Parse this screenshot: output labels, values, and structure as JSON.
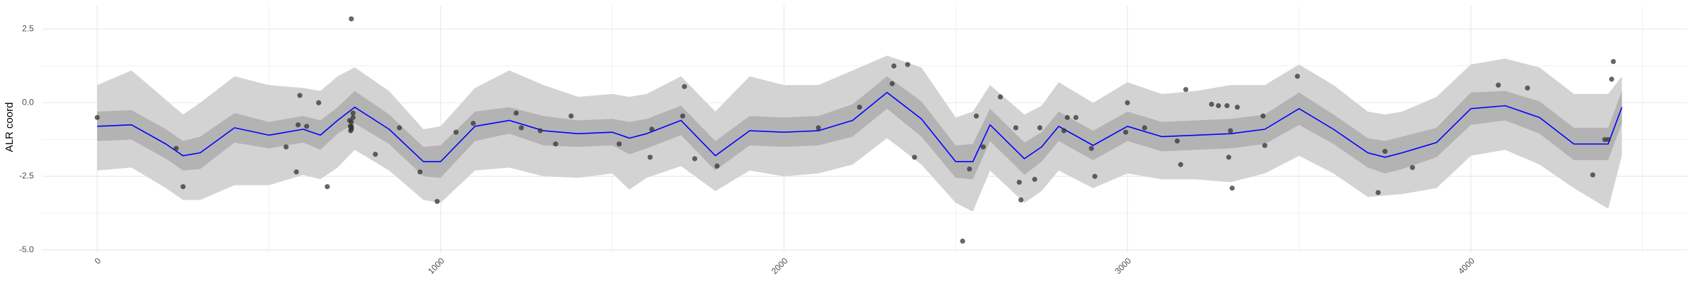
{
  "chart_data": {
    "type": "scatter",
    "title": "",
    "xlabel": "",
    "ylabel": "ALR coord",
    "xlim": [
      -160,
      4630
    ],
    "ylim": [
      -5.1,
      3.3
    ],
    "grid": true,
    "legend": "none",
    "x_ticks": [
      0,
      1000,
      2000,
      3000,
      4000
    ],
    "x_tick_labels": [
      "0",
      "1000",
      "2000",
      "3000",
      "4000"
    ],
    "y_ticks": [
      2.5,
      0.0,
      -2.5,
      -5.0
    ],
    "y_tick_labels": [
      "2.5",
      "0.0",
      "-2.5",
      "-5.0"
    ],
    "colors": {
      "fit_line": "#0000ff",
      "inner_band": "#b3b3b3",
      "outer_band": "#d3d3d3",
      "points": "#333333",
      "grid": "#ebebeb"
    },
    "points": [
      {
        "x": 0,
        "y": -0.5
      },
      {
        "x": 230,
        "y": -1.55
      },
      {
        "x": 250,
        "y": -2.85
      },
      {
        "x": 550,
        "y": -1.5
      },
      {
        "x": 580,
        "y": -2.35
      },
      {
        "x": 585,
        "y": -0.75
      },
      {
        "x": 590,
        "y": 0.25
      },
      {
        "x": 610,
        "y": -0.8
      },
      {
        "x": 645,
        "y": 0.0
      },
      {
        "x": 670,
        "y": -2.85
      },
      {
        "x": 735,
        "y": -0.6
      },
      {
        "x": 737,
        "y": -0.8
      },
      {
        "x": 738,
        "y": -0.95
      },
      {
        "x": 740,
        "y": 2.85
      },
      {
        "x": 740,
        "y": -0.8
      },
      {
        "x": 745,
        "y": -0.35
      },
      {
        "x": 740,
        "y": -0.65
      },
      {
        "x": 740,
        "y": -0.85
      },
      {
        "x": 740,
        "y": -0.9
      },
      {
        "x": 745,
        "y": -0.5
      },
      {
        "x": 810,
        "y": -1.75
      },
      {
        "x": 880,
        "y": -0.85
      },
      {
        "x": 940,
        "y": -2.35
      },
      {
        "x": 990,
        "y": -3.35
      },
      {
        "x": 1045,
        "y": -1.0
      },
      {
        "x": 1095,
        "y": -0.7
      },
      {
        "x": 1220,
        "y": -0.35
      },
      {
        "x": 1235,
        "y": -0.85
      },
      {
        "x": 1290,
        "y": -0.95
      },
      {
        "x": 1335,
        "y": -1.4
      },
      {
        "x": 1380,
        "y": -0.45
      },
      {
        "x": 1520,
        "y": -1.4
      },
      {
        "x": 1610,
        "y": -1.85
      },
      {
        "x": 1615,
        "y": -0.9
      },
      {
        "x": 1705,
        "y": -0.45
      },
      {
        "x": 1710,
        "y": 0.55
      },
      {
        "x": 1740,
        "y": -1.9
      },
      {
        "x": 1805,
        "y": -2.15
      },
      {
        "x": 2100,
        "y": -0.85
      },
      {
        "x": 2220,
        "y": -0.15
      },
      {
        "x": 2315,
        "y": 0.65
      },
      {
        "x": 2320,
        "y": 1.25
      },
      {
        "x": 2360,
        "y": 1.3
      },
      {
        "x": 2380,
        "y": -1.85
      },
      {
        "x": 2520,
        "y": -4.7
      },
      {
        "x": 2540,
        "y": -2.25
      },
      {
        "x": 2560,
        "y": -0.45
      },
      {
        "x": 2580,
        "y": -1.5
      },
      {
        "x": 2630,
        "y": 0.2
      },
      {
        "x": 2675,
        "y": -0.85
      },
      {
        "x": 2685,
        "y": -2.7
      },
      {
        "x": 2690,
        "y": -3.3
      },
      {
        "x": 2730,
        "y": -2.6
      },
      {
        "x": 2745,
        "y": -0.85
      },
      {
        "x": 2815,
        "y": -0.95
      },
      {
        "x": 2825,
        "y": -0.5
      },
      {
        "x": 2850,
        "y": -0.5
      },
      {
        "x": 2895,
        "y": -1.55
      },
      {
        "x": 2905,
        "y": -2.5
      },
      {
        "x": 2995,
        "y": -1.0
      },
      {
        "x": 3000,
        "y": 0.0
      },
      {
        "x": 3050,
        "y": -0.85
      },
      {
        "x": 3145,
        "y": -1.3
      },
      {
        "x": 3155,
        "y": -2.1
      },
      {
        "x": 3170,
        "y": 0.45
      },
      {
        "x": 3245,
        "y": -0.05
      },
      {
        "x": 3265,
        "y": -0.1
      },
      {
        "x": 3290,
        "y": -0.1
      },
      {
        "x": 3295,
        "y": -1.85
      },
      {
        "x": 3300,
        "y": -0.95
      },
      {
        "x": 3305,
        "y": -2.9
      },
      {
        "x": 3320,
        "y": -0.15
      },
      {
        "x": 3395,
        "y": -0.45
      },
      {
        "x": 3400,
        "y": -1.45
      },
      {
        "x": 3495,
        "y": 0.9
      },
      {
        "x": 3730,
        "y": -3.05
      },
      {
        "x": 3750,
        "y": -1.65
      },
      {
        "x": 3830,
        "y": -2.2
      },
      {
        "x": 4080,
        "y": 0.6
      },
      {
        "x": 4165,
        "y": 0.5
      },
      {
        "x": 4355,
        "y": -2.45
      },
      {
        "x": 4390,
        "y": -1.25
      },
      {
        "x": 4400,
        "y": -1.25
      },
      {
        "x": 4410,
        "y": 0.8
      },
      {
        "x": 4415,
        "y": 1.4
      }
    ],
    "fit": {
      "x": [
        0,
        100,
        200,
        250,
        300,
        400,
        500,
        600,
        650,
        700,
        750,
        850,
        950,
        1000,
        1100,
        1200,
        1300,
        1400,
        1500,
        1550,
        1600,
        1700,
        1800,
        1900,
        2000,
        2100,
        2200,
        2300,
        2400,
        2500,
        2550,
        2600,
        2700,
        2750,
        2800,
        2900,
        3000,
        3100,
        3200,
        3300,
        3400,
        3500,
        3600,
        3700,
        3750,
        3800,
        3900,
        4000,
        4100,
        4200,
        4300,
        4400,
        4440
      ],
      "y": [
        -0.8,
        -0.75,
        -1.4,
        -1.8,
        -1.7,
        -0.85,
        -1.1,
        -0.9,
        -1.1,
        -0.6,
        -0.15,
        -0.9,
        -2.0,
        -2.0,
        -0.8,
        -0.6,
        -0.95,
        -1.05,
        -1.0,
        -1.2,
        -1.05,
        -0.6,
        -1.8,
        -0.95,
        -1.0,
        -0.95,
        -0.6,
        0.35,
        -0.55,
        -2.0,
        -2.0,
        -0.75,
        -1.9,
        -1.5,
        -0.8,
        -1.45,
        -0.8,
        -1.15,
        -1.1,
        -1.05,
        -0.9,
        -0.2,
        -0.9,
        -1.7,
        -1.85,
        -1.7,
        -1.35,
        -0.2,
        -0.1,
        -0.5,
        -1.4,
        -1.4,
        -0.15
      ],
      "inner_lo": [
        -1.3,
        -1.25,
        -1.9,
        -2.3,
        -2.25,
        -1.35,
        -1.55,
        -1.35,
        -1.6,
        -1.05,
        -0.7,
        -1.4,
        -2.5,
        -2.55,
        -1.3,
        -1.05,
        -1.45,
        -1.5,
        -1.45,
        -1.75,
        -1.55,
        -1.1,
        -2.3,
        -1.45,
        -1.5,
        -1.45,
        -1.15,
        -0.2,
        -1.15,
        -2.55,
        -2.6,
        -1.3,
        -2.45,
        -2.0,
        -1.3,
        -1.95,
        -1.3,
        -1.65,
        -1.6,
        -1.55,
        -1.4,
        -0.75,
        -1.4,
        -2.2,
        -2.4,
        -2.25,
        -1.85,
        -0.75,
        -0.6,
        -1.05,
        -1.95,
        -1.95,
        -0.7
      ],
      "inner_hi": [
        -0.3,
        -0.25,
        -0.9,
        -1.3,
        -1.15,
        -0.35,
        -0.65,
        -0.45,
        -0.6,
        -0.15,
        0.4,
        -0.4,
        -1.5,
        -1.45,
        -0.3,
        -0.15,
        -0.45,
        -0.6,
        -0.55,
        -0.65,
        -0.55,
        -0.1,
        -1.3,
        -0.45,
        -0.5,
        -0.45,
        -0.05,
        0.9,
        0.05,
        -1.45,
        -1.4,
        -0.2,
        -1.35,
        -1.0,
        -0.3,
        -0.95,
        -0.3,
        -0.65,
        -0.6,
        -0.55,
        -0.4,
        0.35,
        -0.4,
        -1.2,
        -1.3,
        -1.15,
        -0.85,
        0.35,
        0.4,
        0.05,
        -0.85,
        -0.85,
        0.4
      ],
      "outer_lo": [
        -2.3,
        -2.2,
        -2.9,
        -3.3,
        -3.3,
        -2.8,
        -2.8,
        -2.45,
        -2.6,
        -2.2,
        -1.6,
        -2.3,
        -3.3,
        -3.4,
        -2.3,
        -2.2,
        -2.5,
        -2.55,
        -2.4,
        -2.95,
        -2.55,
        -2.15,
        -3.0,
        -2.3,
        -2.5,
        -2.4,
        -2.1,
        -1.2,
        -2.1,
        -3.4,
        -3.7,
        -2.3,
        -3.4,
        -3.0,
        -2.3,
        -2.9,
        -2.4,
        -2.6,
        -2.6,
        -2.7,
        -2.4,
        -1.8,
        -2.4,
        -3.2,
        -3.15,
        -3.1,
        -2.9,
        -1.8,
        -1.6,
        -2.1,
        -2.9,
        -3.6,
        -1.8
      ],
      "outer_hi": [
        0.6,
        1.1,
        0.1,
        -0.4,
        0.0,
        0.9,
        0.6,
        0.5,
        0.4,
        0.9,
        1.2,
        0.4,
        -0.9,
        -0.8,
        0.5,
        1.1,
        0.6,
        0.2,
        0.3,
        0.2,
        0.3,
        0.9,
        -0.3,
        0.9,
        0.6,
        0.6,
        1.1,
        1.6,
        1.2,
        -0.5,
        -0.3,
        0.6,
        -0.4,
        -0.1,
        0.7,
        0.0,
        0.7,
        0.3,
        0.4,
        0.6,
        0.6,
        1.3,
        0.6,
        -0.3,
        -0.4,
        -0.3,
        0.2,
        1.3,
        1.5,
        1.2,
        0.3,
        0.3,
        0.9
      ]
    }
  }
}
